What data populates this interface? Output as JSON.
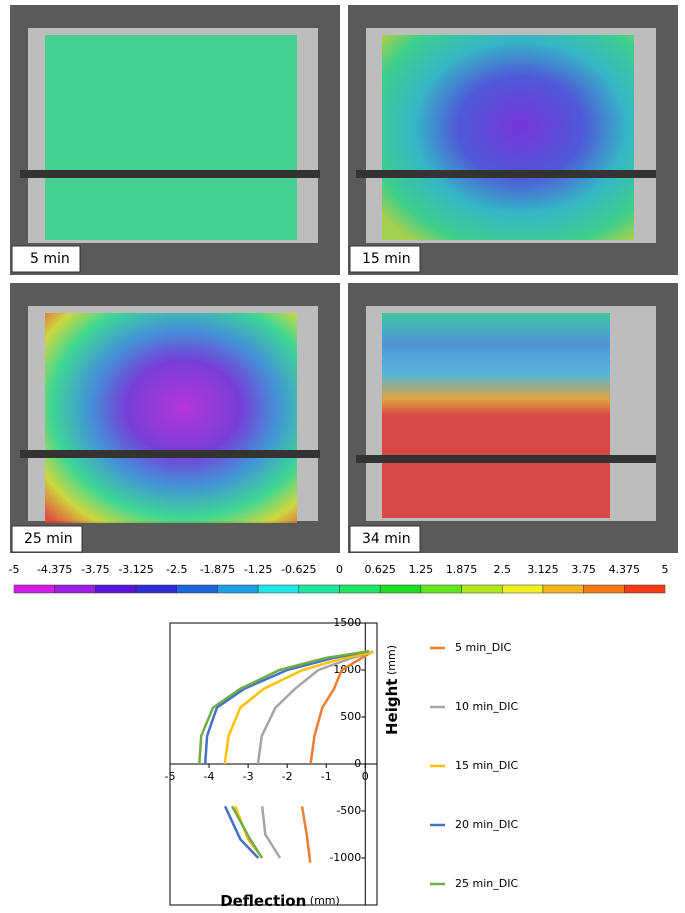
{
  "panels": [
    {
      "label": "5 min"
    },
    {
      "label": "15 min"
    },
    {
      "label": "25 min"
    },
    {
      "label": "34 min"
    }
  ],
  "colorbar": {
    "ticks": [
      -5,
      -4.375,
      -3.75,
      -3.125,
      -2.5,
      -1.875,
      -1.25,
      -0.625,
      0,
      0.625,
      1.25,
      1.875,
      2.5,
      3.125,
      3.75,
      4.375,
      5
    ],
    "colors": [
      "#d21ee6",
      "#9b1ee6",
      "#5a14dc",
      "#2d2dd2",
      "#1e64dc",
      "#1ea0e6",
      "#1ee6e6",
      "#1ee6a0",
      "#1ee664",
      "#1edc1e",
      "#64e61e",
      "#b4e61e",
      "#f0f01e",
      "#f5b41e",
      "#f57814",
      "#f53c14"
    ]
  },
  "chart_data": {
    "type": "line",
    "xlabel": {
      "bold": "Deflection",
      "unit": "(mm)"
    },
    "ylabel": {
      "bold": "Height",
      "unit": "(mm)"
    },
    "xlim": [
      -5,
      0.3
    ],
    "ylim": [
      -1500,
      1500
    ],
    "xticks": [
      -5,
      -4,
      -3,
      -2,
      -1,
      0
    ],
    "yticks": [
      -1000,
      -500,
      0,
      500,
      1000,
      1500
    ],
    "series": [
      {
        "name": "5 min_DIC",
        "color": "#ed7d31",
        "x": [
          -1.4,
          -1.3,
          -1.1,
          -0.8,
          -0.6,
          -0.2,
          0.2,
          null,
          -1.62,
          -1.5,
          -1.41
        ],
        "values": [
          0,
          300,
          600,
          800,
          1000,
          1100,
          1200,
          null,
          -450,
          -750,
          -1050
        ]
      },
      {
        "name": "10 min_DIC",
        "color": "#a5a5a5",
        "x": [
          -2.75,
          -2.65,
          -2.3,
          -1.8,
          -1.2,
          -0.4,
          0.2,
          null,
          -2.64,
          -2.56,
          -2.18
        ],
        "values": [
          0,
          300,
          600,
          800,
          1000,
          1120,
          1190,
          null,
          -450,
          -750,
          -1000
        ]
      },
      {
        "name": "15 min_DIC",
        "color": "#ffc000",
        "x": [
          -3.6,
          -3.5,
          -3.2,
          -2.6,
          -1.6,
          -0.6,
          0.2,
          null,
          -3.33,
          -3.0,
          -2.64
        ],
        "values": [
          0,
          300,
          600,
          800,
          1000,
          1120,
          1190,
          null,
          -450,
          -800,
          -1000
        ]
      },
      {
        "name": "20 min_DIC",
        "color": "#4472c4",
        "x": [
          -4.1,
          -4.05,
          -3.8,
          -3.1,
          -2.0,
          -0.8,
          0.1,
          null,
          -3.59,
          -3.2,
          -2.74
        ],
        "values": [
          0,
          300,
          600,
          800,
          1000,
          1130,
          1200,
          null,
          -450,
          -800,
          -1000
        ]
      },
      {
        "name": "25 min_DIC",
        "color": "#70ad47",
        "x": [
          -4.25,
          -4.2,
          -3.9,
          -3.2,
          -2.2,
          -1.0,
          0.1,
          null,
          -3.41,
          -2.95,
          -2.64
        ],
        "values": [
          0,
          300,
          600,
          800,
          1000,
          1130,
          1200,
          null,
          -450,
          -800,
          -1000
        ]
      }
    ]
  }
}
